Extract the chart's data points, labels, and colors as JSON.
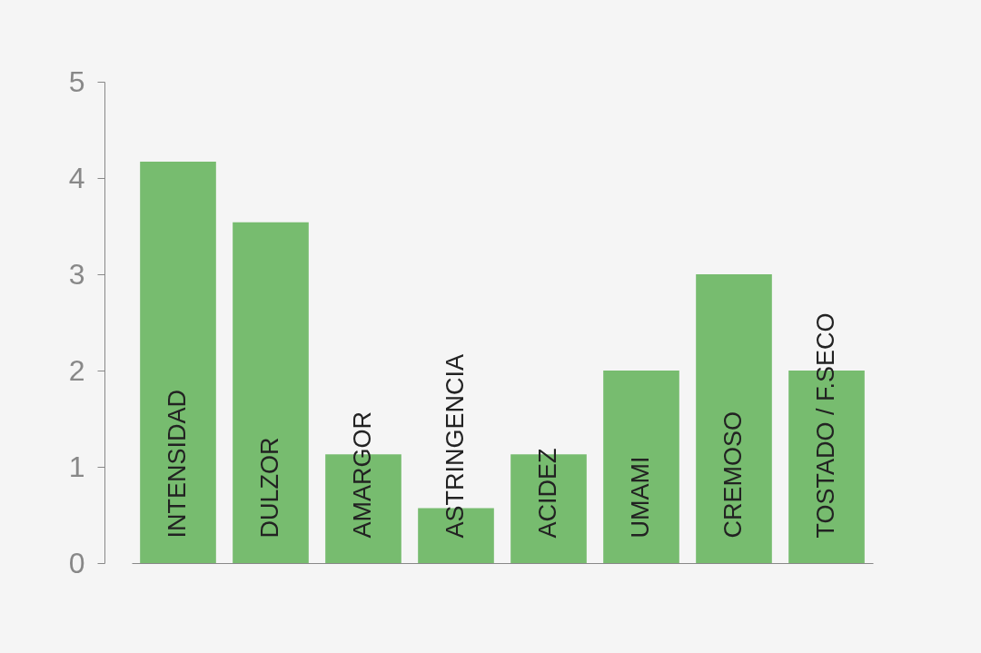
{
  "chart_data": {
    "type": "bar",
    "categories": [
      "INTENSIDAD",
      "DULZOR",
      "AMARGOR",
      "ASTRINGENCIA",
      "ACIDEZ",
      "UMAMI",
      "CREMOSO",
      "TOSTADO / F.SECO"
    ],
    "values": [
      4.17,
      3.54,
      1.13,
      0.57,
      1.13,
      2,
      3,
      2
    ],
    "color": "#77bc6f",
    "ylim": [
      0,
      5
    ],
    "yticks": [
      0,
      1,
      2,
      3,
      4,
      5
    ]
  }
}
